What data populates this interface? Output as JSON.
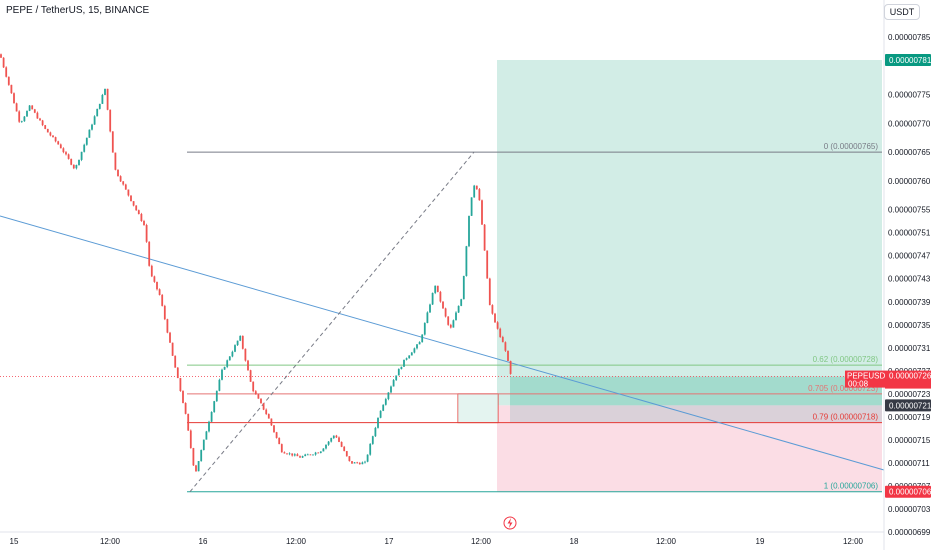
{
  "header": {
    "title": "PEPE / TetherUS, 15, BINANCE",
    "currency_button": "USDT"
  },
  "colors": {
    "up": "#26a69a",
    "down": "#ef5350",
    "trendline": "#5b9bd5",
    "target_fill": "#d2ede6",
    "stop_fill": "#fbdde5",
    "fib_line": "#9e9e9e"
  },
  "chart_data": {
    "type": "candlestick",
    "symbol": "PEPEUSDT",
    "exchange": "BINANCE",
    "interval": "15",
    "y_range": [
      6.99e-06,
      7.87e-06
    ],
    "y_ticks": [
      "0.00000785",
      "0.00000781",
      "0.00000775",
      "0.00000770",
      "0.00000765",
      "0.00000760",
      "0.00000755",
      "0.00000751",
      "0.00000747",
      "0.00000743",
      "0.00000739",
      "0.00000735",
      "0.00000731",
      "0.00000727",
      "0.00000723",
      "0.00000719",
      "0.00000715",
      "0.00000711",
      "0.00000707",
      "0.00000703",
      "0.00000699"
    ],
    "x_ticks": [
      "15",
      "12:00",
      "16",
      "12:00",
      "17",
      "12:00",
      "18",
      "12:00",
      "19",
      "12:00"
    ],
    "price_path": [
      [
        0,
        7.82e-06
      ],
      [
        10,
        7.76e-06
      ],
      [
        20,
        7.7e-06
      ],
      [
        30,
        7.73e-06
      ],
      [
        45,
        7.69e-06
      ],
      [
        60,
        7.66e-06
      ],
      [
        75,
        7.62e-06
      ],
      [
        90,
        7.69e-06
      ],
      [
        105,
        7.76e-06
      ],
      [
        115,
        7.62e-06
      ],
      [
        130,
        7.57e-06
      ],
      [
        145,
        7.52e-06
      ],
      [
        150,
        7.44e-06
      ],
      [
        160,
        7.4e-06
      ],
      [
        172,
        7.3e-06
      ],
      [
        185,
        7.2e-06
      ],
      [
        195,
        7.09e-06
      ],
      [
        210,
        7.19e-06
      ],
      [
        222,
        7.27e-06
      ],
      [
        240,
        7.33e-06
      ],
      [
        252,
        7.24e-06
      ],
      [
        268,
        7.19e-06
      ],
      [
        282,
        7.13e-06
      ],
      [
        300,
        7.12e-06
      ],
      [
        320,
        7.13e-06
      ],
      [
        335,
        7.16e-06
      ],
      [
        350,
        7.11e-06
      ],
      [
        365,
        7.11e-06
      ],
      [
        380,
        7.2e-06
      ],
      [
        395,
        7.26e-06
      ],
      [
        405,
        7.29e-06
      ],
      [
        420,
        7.32e-06
      ],
      [
        435,
        7.42e-06
      ],
      [
        450,
        7.34e-06
      ],
      [
        462,
        7.4e-06
      ],
      [
        470,
        7.56e-06
      ],
      [
        475,
        7.6e-06
      ],
      [
        480,
        7.56e-06
      ],
      [
        490,
        7.38e-06
      ],
      [
        500,
        7.33e-06
      ],
      [
        505,
        7.31e-06
      ],
      [
        511,
        7.26e-06
      ]
    ],
    "fib_levels": [
      {
        "label": "0 (0.00000765)",
        "value": 7.65e-06
      },
      {
        "label": "0.62 (0.00000728)",
        "value": 7.28e-06
      },
      {
        "label": "0.705 (0.00000723)",
        "value": 7.23e-06
      },
      {
        "label": "0.79 (0.00000718)",
        "value": 7.18e-06
      },
      {
        "label": "1 (0.00000706)",
        "value": 7.06e-06
      }
    ],
    "position": {
      "entry": 7.21e-06,
      "target": 7.81e-06,
      "stop": 7.06e-06
    },
    "price_tags": [
      {
        "text": "0.00000781",
        "value": 7.81e-06,
        "color": "#089981"
      },
      {
        "text": "PEPEUSDT",
        "value": 7.26e-06,
        "color": "#f23645",
        "line2": "0.00000726",
        "line3": "00:08"
      },
      {
        "text": "0.00000721",
        "value": 7.21e-06,
        "color": "#363a45"
      },
      {
        "text": "0.00000706",
        "value": 7.06e-06,
        "color": "#f23645"
      }
    ],
    "last_price": 7.26e-06,
    "countdown": "00:08"
  }
}
